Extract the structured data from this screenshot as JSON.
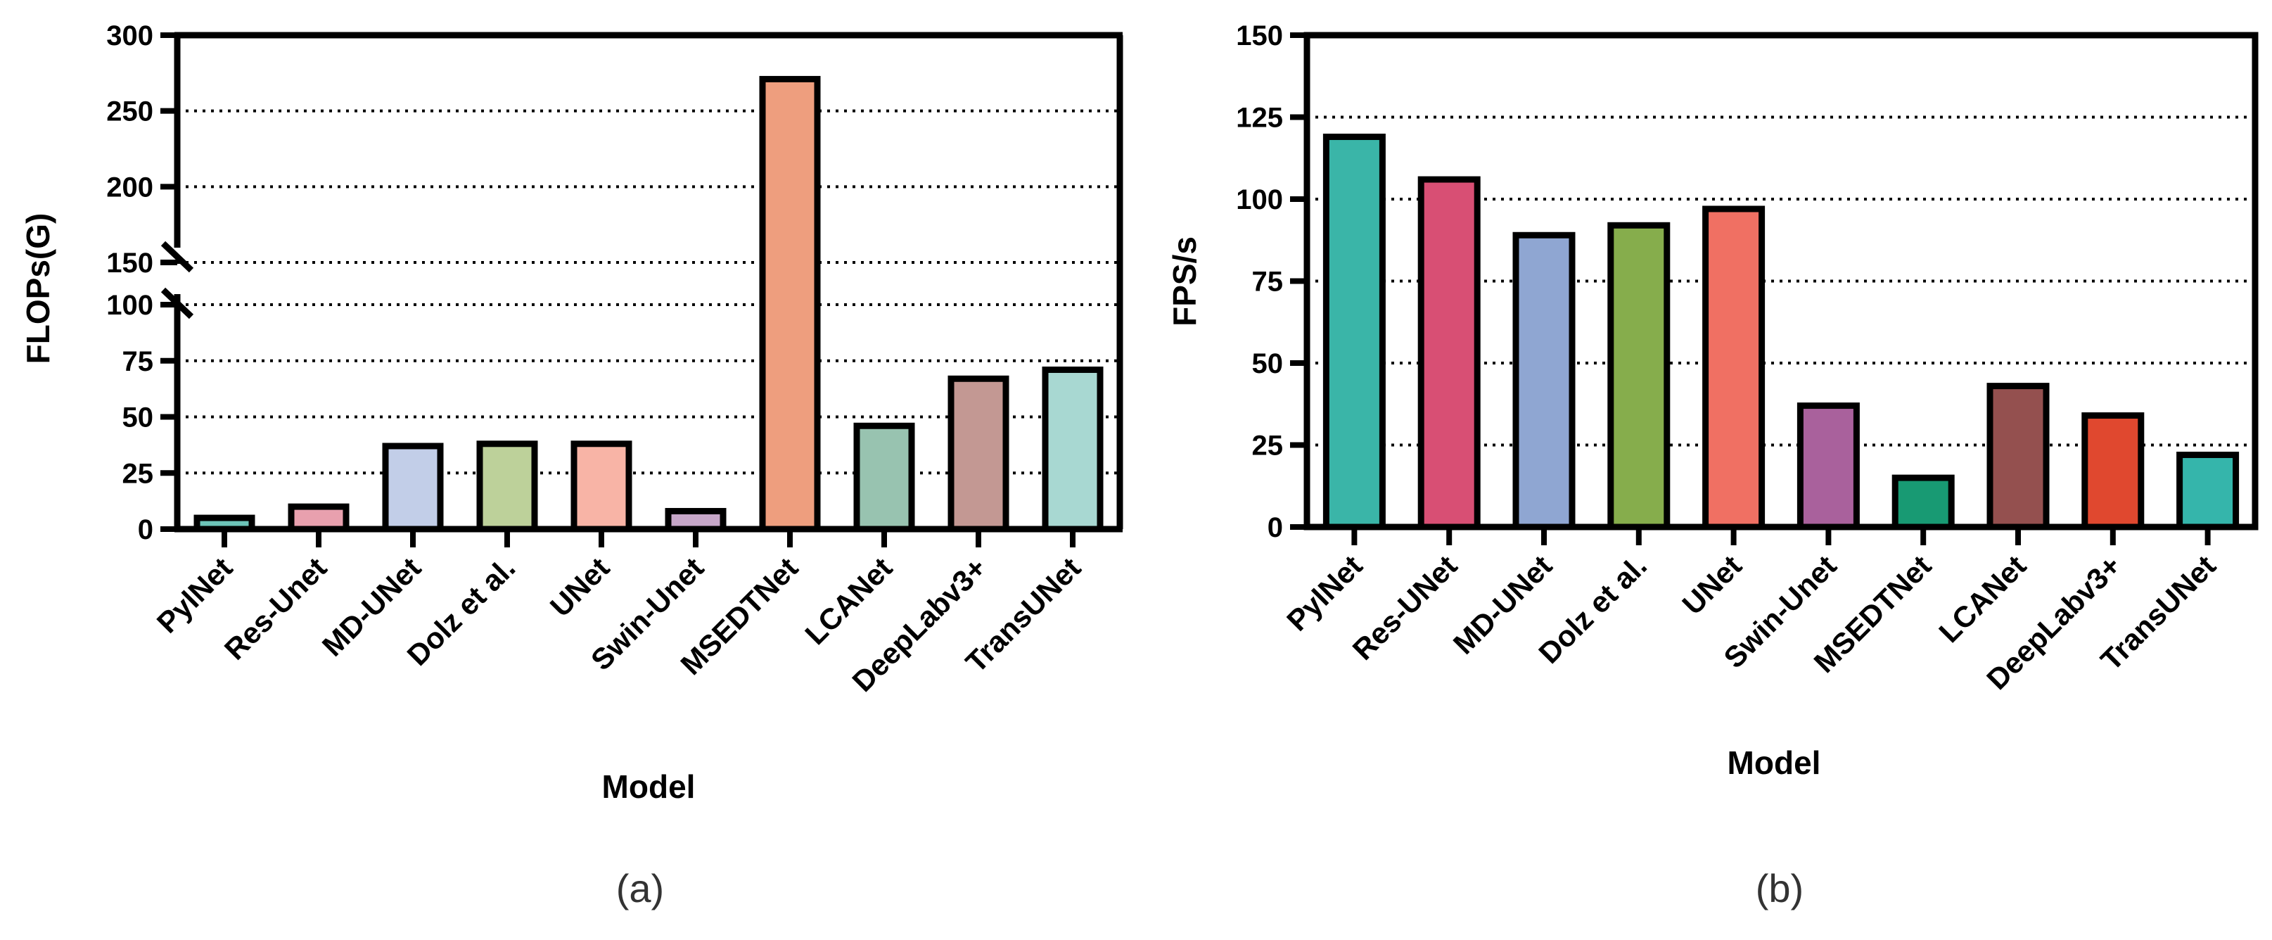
{
  "chart_data": [
    {
      "type": "bar",
      "panel_label": "(a)",
      "title": "",
      "xlabel": "Model",
      "ylabel": "FLOPs(G)",
      "categories": [
        "PylNet",
        "Res-Unet",
        "MD-UNet",
        "Dolz et al.",
        "UNet",
        "Swin-Unet",
        "MSEDTNet",
        "LCANet",
        "DeepLabv3+",
        "TransUNet"
      ],
      "values": [
        5,
        10,
        37,
        38,
        38,
        8,
        271,
        46,
        67,
        71
      ],
      "colors": [
        "#6cc4b8",
        "#e8a0ae",
        "#c2cee8",
        "#bdd19a",
        "#f8b4a6",
        "#c7a7c9",
        "#ee9e7e",
        "#98c3b0",
        "#c39893",
        "#a8d8d2"
      ],
      "axis_break": {
        "lower_range": [
          0,
          100
        ],
        "upper_range": [
          150,
          300
        ]
      },
      "yticks": [
        "0",
        "25",
        "50",
        "75",
        "100",
        "150",
        "200",
        "250",
        "300"
      ],
      "ytick_values": [
        0,
        25,
        50,
        75,
        100,
        150,
        200,
        250,
        300
      ],
      "grid": "dotted horizontal",
      "legend": "none"
    },
    {
      "type": "bar",
      "panel_label": "(b)",
      "title": "",
      "xlabel": "Model",
      "ylabel": "FPS/s",
      "categories": [
        "PylNet",
        "Res-UNet",
        "MD-UNet",
        "Dolz et al.",
        "UNet",
        "Swin-Unet",
        "MSEDTNet",
        "LCANet",
        "DeepLabv3+",
        "TransUNet"
      ],
      "values": [
        119,
        106,
        89,
        92,
        97,
        37,
        15,
        43,
        34,
        22
      ],
      "colors": [
        "#3ab5a8",
        "#d84f74",
        "#8fa6d2",
        "#86ad4c",
        "#f07063",
        "#a9619c",
        "#189a73",
        "#94504f",
        "#e0482f",
        "#35b5ab"
      ],
      "ylim": [
        0,
        150
      ],
      "yticks": [
        "0",
        "25",
        "50",
        "75",
        "100",
        "125",
        "150"
      ],
      "ytick_values": [
        0,
        25,
        50,
        75,
        100,
        125,
        150
      ],
      "grid": "dotted horizontal",
      "legend": "none"
    }
  ]
}
